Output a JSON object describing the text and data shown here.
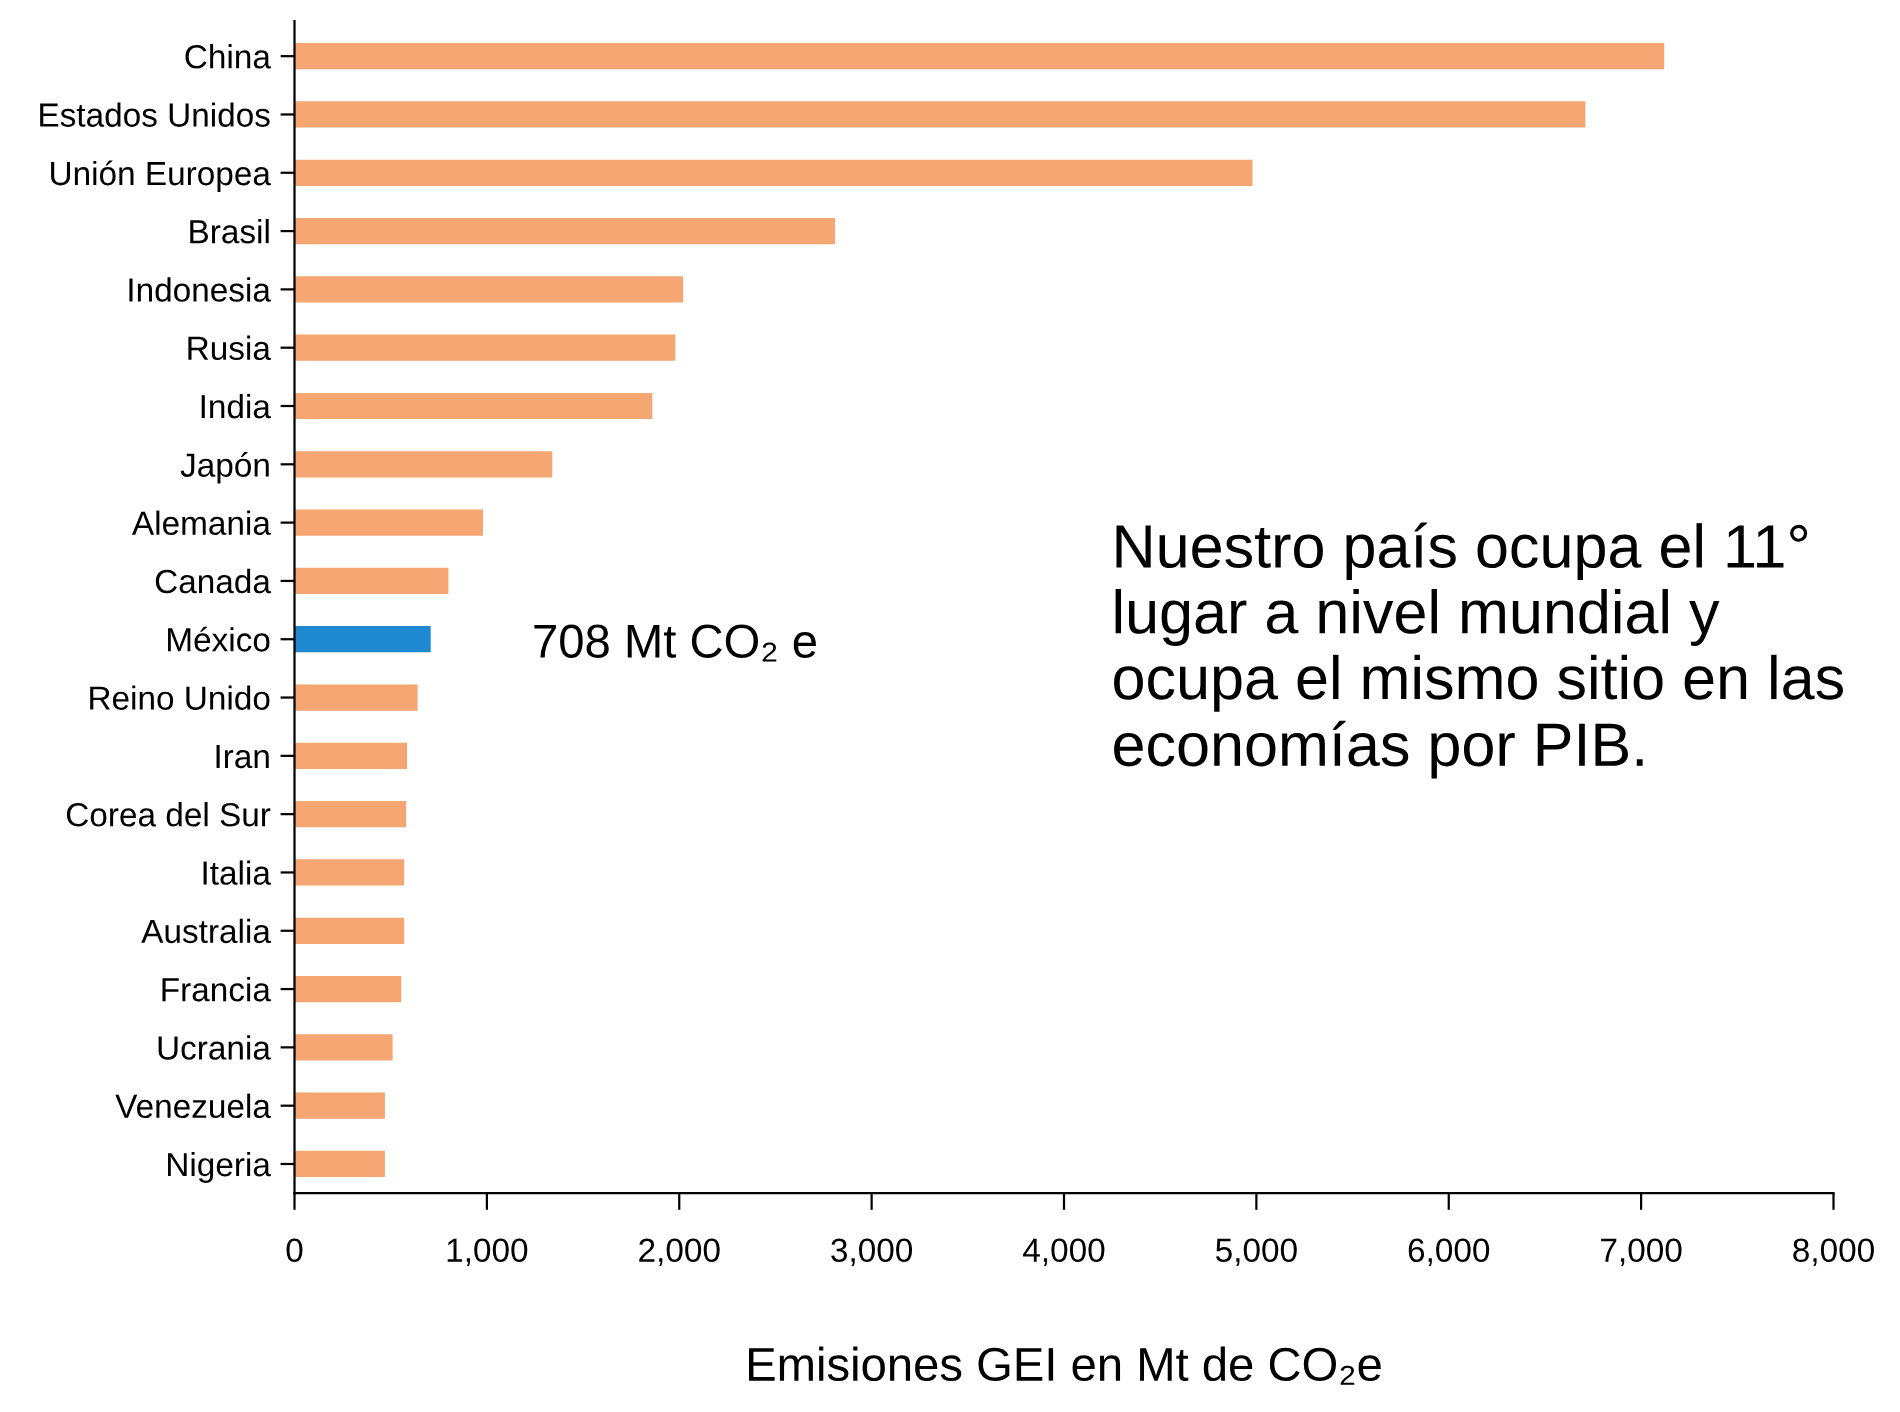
{
  "chart_data": {
    "type": "bar",
    "orientation": "horizontal",
    "xlabel": "Emisiones GEI en Mt de CO₂e",
    "categories": [
      "China",
      "Estados Unidos",
      "Unión Europea",
      "Brasil",
      "Indonesia",
      "Rusia",
      "India",
      "Japón",
      "Alemania",
      "Canada",
      "México",
      "Reino Unido",
      "Iran",
      "Corea del Sur",
      "Italia",
      "Australia",
      "Francia",
      "Ucrania",
      "Venezuela",
      "Nigeria"
    ],
    "values": [
      7120,
      6710,
      4980,
      2810,
      2020,
      1980,
      1860,
      1340,
      980,
      800,
      708,
      640,
      585,
      580,
      570,
      570,
      555,
      510,
      470,
      470
    ],
    "colors": [
      "#f5a673",
      "#f5a673",
      "#f5a673",
      "#f5a673",
      "#f5a673",
      "#f5a673",
      "#f5a673",
      "#f5a673",
      "#f5a673",
      "#f5a673",
      "#1e88d0",
      "#f5a673",
      "#f5a673",
      "#f5a673",
      "#f5a673",
      "#f5a673",
      "#f5a673",
      "#f5a673",
      "#f5a673",
      "#f5a673"
    ],
    "xlim": [
      0,
      8000
    ],
    "xticks": [
      0,
      {
        "value": 1000,
        "label": "1,000"
      },
      {
        "value": 2000,
        "label": "2,000"
      },
      {
        "value": 3000,
        "label": "3,000"
      },
      {
        "value": 4000,
        "label": "4,000"
      },
      {
        "value": 5000,
        "label": "5,000"
      },
      {
        "value": 6000,
        "label": "6,000"
      },
      {
        "value": 7000,
        "label": "7,000"
      },
      {
        "value": 8000,
        "label": "8,000"
      }
    ],
    "grid": false,
    "legend": false,
    "annotations": [
      "708 Mt CO₂ e",
      "Nuestro país ocupa el 11° lugar a nivel mundial y ocupa el mismo sitio en las economías por PIB."
    ]
  }
}
